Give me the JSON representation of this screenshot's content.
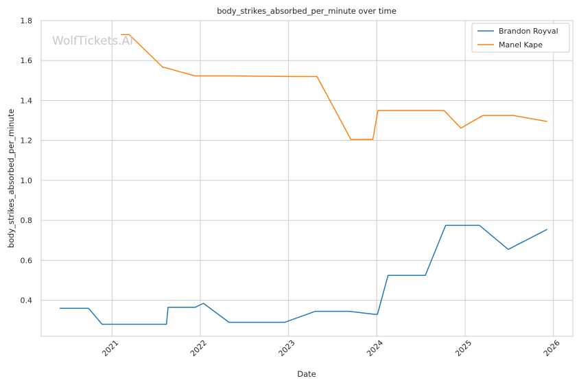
{
  "chart_data": {
    "type": "line",
    "title": "body_strikes_absorbed_per_minute over time",
    "xlabel": "Date",
    "ylabel": "body_strikes_absorbed_per_minute",
    "watermark": "WolfTickets.AI",
    "xlim": [
      "2020-03-14",
      "2026-03-22"
    ],
    "ylim": [
      0.22,
      1.8
    ],
    "x_ticks": [
      "2021",
      "2022",
      "2023",
      "2024",
      "2025",
      "2026"
    ],
    "y_ticks": [
      "0.4",
      "0.6",
      "0.8",
      "1.0",
      "1.2",
      "1.4",
      "1.6",
      "1.8"
    ],
    "grid": true,
    "legend_position": "top-right",
    "series": [
      {
        "name": "Brandon Royval",
        "color": "#1f77b4",
        "points": [
          [
            "2020-05-30",
            0.36
          ],
          [
            "2020-09-26",
            0.36
          ],
          [
            "2020-11-21",
            0.28
          ],
          [
            "2021-08-14",
            0.28
          ],
          [
            "2021-08-21",
            0.365
          ],
          [
            "2021-12-11",
            0.365
          ],
          [
            "2022-01-14",
            0.385
          ],
          [
            "2022-04-30",
            0.29
          ],
          [
            "2022-12-17",
            0.29
          ],
          [
            "2023-04-22",
            0.345
          ],
          [
            "2023-09-09",
            0.345
          ],
          [
            "2023-12-23",
            0.33
          ],
          [
            "2024-01-04",
            0.33
          ],
          [
            "2024-02-17",
            0.525
          ],
          [
            "2024-07-20",
            0.525
          ],
          [
            "2024-10-12",
            0.775
          ],
          [
            "2025-03-01",
            0.775
          ],
          [
            "2025-06-28",
            0.655
          ],
          [
            "2025-12-06",
            0.755
          ]
        ]
      },
      {
        "name": "Manel Kape",
        "color": "#ff7f0e",
        "points": [
          [
            "2021-02-06",
            1.73
          ],
          [
            "2021-03-13",
            1.73
          ],
          [
            "2021-07-31",
            1.565
          ],
          [
            "2021-08-07",
            1.565
          ],
          [
            "2021-12-11",
            1.523
          ],
          [
            "2022-05-07",
            1.523
          ],
          [
            "2023-01-14",
            1.52
          ],
          [
            "2023-04-29",
            1.52
          ],
          [
            "2023-09-16",
            1.205
          ],
          [
            "2023-12-16",
            1.205
          ],
          [
            "2024-01-06",
            1.35
          ],
          [
            "2024-10-05",
            1.35
          ],
          [
            "2024-12-14",
            1.262
          ],
          [
            "2025-03-15",
            1.325
          ],
          [
            "2025-07-19",
            1.325
          ],
          [
            "2025-12-06",
            1.295
          ]
        ]
      }
    ]
  }
}
